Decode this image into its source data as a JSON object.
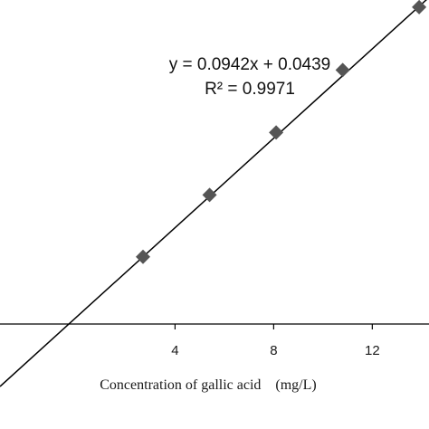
{
  "chart_data": {
    "type": "scatter",
    "xlabel": "Concentration of gallic acid　(mg/L)",
    "ylabel": "",
    "xlim": [
      -3.1,
      14.3
    ],
    "ylim": [
      0.015,
      1.38
    ],
    "x_ticks": [
      4,
      8,
      12
    ],
    "x_tick_labels": [
      "4",
      "8",
      "12"
    ],
    "grid": false,
    "series": [
      {
        "points": [
          {
            "x": 2.7,
            "y": 0.298
          },
          {
            "x": 5.4,
            "y": 0.559
          },
          {
            "x": 8.1,
            "y": 0.822
          },
          {
            "x": 10.8,
            "y": 1.085
          },
          {
            "x": 13.9,
            "y": 1.35
          }
        ],
        "marker": "diamond",
        "color": "#555555"
      }
    ],
    "trendline": {
      "slope": 0.0942,
      "intercept": 0.0439,
      "color": "#000000"
    },
    "annotations": {
      "equation": "y = 0.0942x + 0.0439",
      "r_squared": "R² = 0.9971"
    }
  }
}
